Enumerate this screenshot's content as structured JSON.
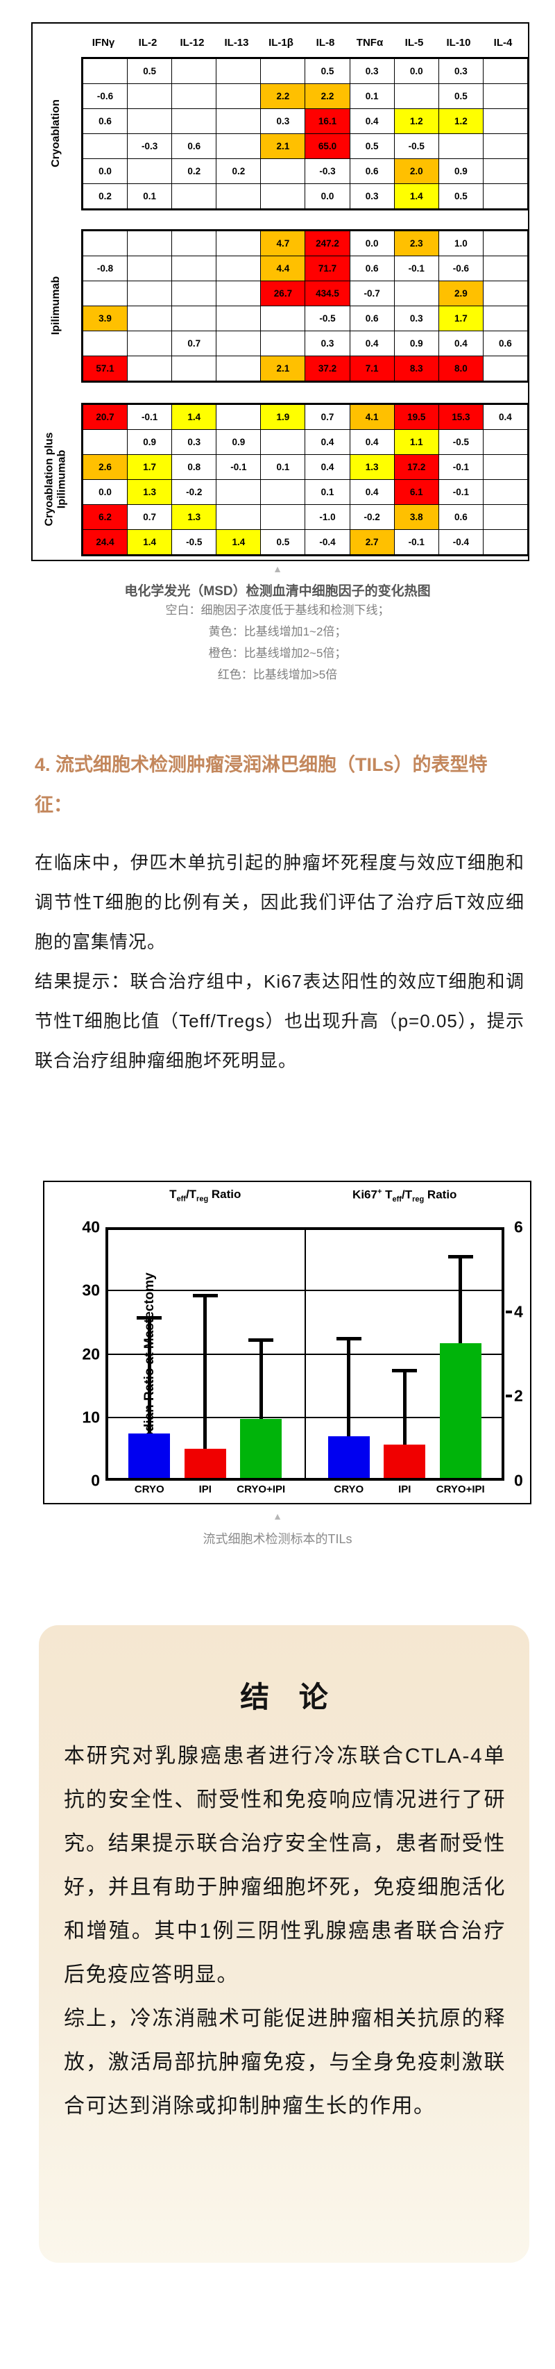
{
  "colors": {
    "yellow": "#FFFF00",
    "orange": "#FFC000",
    "red": "#FF0000",
    "bar_blue": "#0000F0",
    "bar_red": "#F00000",
    "bar_green": "#00B40A",
    "heading_accent": "#C3875C",
    "caption_gray": "#7F7F7F"
  },
  "heatmap": {
    "columns": [
      "IFNγ",
      "IL-2",
      "IL-12",
      "IL-13",
      "IL-1β",
      "IL-8",
      "TNFα",
      "IL-5",
      "IL-10",
      "IL-4"
    ],
    "color_codes": {
      "Y": "#FFFF00",
      "O": "#FFC000",
      "R": "#FF0000"
    },
    "groups": [
      {
        "label": "Cryoablation",
        "rows": [
          [
            [
              "",
              ""
            ],
            [
              "0.5",
              ""
            ],
            [
              "",
              ""
            ],
            [
              "",
              ""
            ],
            [
              "",
              ""
            ],
            [
              "0.5",
              ""
            ],
            [
              "0.3",
              ""
            ],
            [
              "0.0",
              ""
            ],
            [
              "0.3",
              ""
            ],
            [
              "",
              ""
            ]
          ],
          [
            [
              "-0.6",
              ""
            ],
            [
              "",
              ""
            ],
            [
              "",
              ""
            ],
            [
              "",
              ""
            ],
            [
              "2.2",
              "O"
            ],
            [
              "2.2",
              "O"
            ],
            [
              "0.1",
              ""
            ],
            [
              "",
              ""
            ],
            [
              "0.5",
              ""
            ],
            [
              "",
              ""
            ]
          ],
          [
            [
              "0.6",
              ""
            ],
            [
              "",
              ""
            ],
            [
              "",
              ""
            ],
            [
              "",
              ""
            ],
            [
              "0.3",
              ""
            ],
            [
              "16.1",
              "R"
            ],
            [
              "0.4",
              ""
            ],
            [
              "1.2",
              "Y"
            ],
            [
              "1.2",
              "Y"
            ],
            [
              "",
              ""
            ]
          ],
          [
            [
              "",
              ""
            ],
            [
              "-0.3",
              ""
            ],
            [
              "0.6",
              ""
            ],
            [
              "",
              ""
            ],
            [
              "2.1",
              "O"
            ],
            [
              "65.0",
              "R"
            ],
            [
              "0.5",
              ""
            ],
            [
              "-0.5",
              ""
            ],
            [
              "",
              ""
            ],
            [
              "",
              ""
            ]
          ],
          [
            [
              "0.0",
              ""
            ],
            [
              "",
              ""
            ],
            [
              "0.2",
              ""
            ],
            [
              "0.2",
              ""
            ],
            [
              "",
              ""
            ],
            [
              "-0.3",
              ""
            ],
            [
              "0.6",
              ""
            ],
            [
              "2.0",
              "O"
            ],
            [
              "0.9",
              ""
            ],
            [
              "",
              ""
            ]
          ],
          [
            [
              "0.2",
              ""
            ],
            [
              "0.1",
              ""
            ],
            [
              "",
              ""
            ],
            [
              "",
              ""
            ],
            [
              "",
              ""
            ],
            [
              "0.0",
              ""
            ],
            [
              "0.3",
              ""
            ],
            [
              "1.4",
              "Y"
            ],
            [
              "0.5",
              ""
            ],
            [
              "",
              ""
            ]
          ]
        ]
      },
      {
        "label": "Ipilimumab",
        "rows": [
          [
            [
              "",
              ""
            ],
            [
              "",
              ""
            ],
            [
              "",
              ""
            ],
            [
              "",
              ""
            ],
            [
              "4.7",
              "O"
            ],
            [
              "247.2",
              "R"
            ],
            [
              "0.0",
              ""
            ],
            [
              "2.3",
              "O"
            ],
            [
              "1.0",
              ""
            ],
            [
              "",
              ""
            ]
          ],
          [
            [
              "-0.8",
              ""
            ],
            [
              "",
              ""
            ],
            [
              "",
              ""
            ],
            [
              "",
              ""
            ],
            [
              "4.4",
              "O"
            ],
            [
              "71.7",
              "R"
            ],
            [
              "0.6",
              ""
            ],
            [
              "-0.1",
              ""
            ],
            [
              "-0.6",
              ""
            ],
            [
              "",
              ""
            ]
          ],
          [
            [
              "",
              ""
            ],
            [
              "",
              ""
            ],
            [
              "",
              ""
            ],
            [
              "",
              ""
            ],
            [
              "26.7",
              "R"
            ],
            [
              "434.5",
              "R"
            ],
            [
              "-0.7",
              ""
            ],
            [
              "",
              ""
            ],
            [
              "2.9",
              "O"
            ],
            [
              "",
              ""
            ]
          ],
          [
            [
              "3.9",
              "O"
            ],
            [
              "",
              ""
            ],
            [
              "",
              ""
            ],
            [
              "",
              ""
            ],
            [
              "",
              ""
            ],
            [
              "-0.5",
              ""
            ],
            [
              "0.6",
              ""
            ],
            [
              "0.3",
              ""
            ],
            [
              "1.7",
              "Y"
            ],
            [
              "",
              ""
            ]
          ],
          [
            [
              "",
              ""
            ],
            [
              "",
              ""
            ],
            [
              "0.7",
              ""
            ],
            [
              "",
              ""
            ],
            [
              "",
              ""
            ],
            [
              "0.3",
              ""
            ],
            [
              "0.4",
              ""
            ],
            [
              "0.9",
              ""
            ],
            [
              "0.4",
              ""
            ],
            [
              "0.6",
              ""
            ]
          ],
          [
            [
              "57.1",
              "R"
            ],
            [
              "",
              ""
            ],
            [
              "",
              ""
            ],
            [
              "",
              ""
            ],
            [
              "2.1",
              "O"
            ],
            [
              "37.2",
              "R"
            ],
            [
              "7.1",
              "R"
            ],
            [
              "8.3",
              "R"
            ],
            [
              "8.0",
              "R"
            ],
            [
              "",
              ""
            ]
          ]
        ]
      },
      {
        "label": "Cryoablation plus\nIpilimumab",
        "rows": [
          [
            [
              "20.7",
              "R"
            ],
            [
              "-0.1",
              ""
            ],
            [
              "1.4",
              "Y"
            ],
            [
              "",
              ""
            ],
            [
              "1.9",
              "Y"
            ],
            [
              "0.7",
              ""
            ],
            [
              "4.1",
              "O"
            ],
            [
              "19.5",
              "R"
            ],
            [
              "15.3",
              "R"
            ],
            [
              "0.4",
              ""
            ]
          ],
          [
            [
              "",
              ""
            ],
            [
              "0.9",
              ""
            ],
            [
              "0.3",
              ""
            ],
            [
              "0.9",
              ""
            ],
            [
              "",
              ""
            ],
            [
              "0.4",
              ""
            ],
            [
              "0.4",
              ""
            ],
            [
              "1.1",
              "Y"
            ],
            [
              "-0.5",
              ""
            ],
            [
              "",
              ""
            ]
          ],
          [
            [
              "2.6",
              "O"
            ],
            [
              "1.7",
              "Y"
            ],
            [
              "0.8",
              ""
            ],
            [
              "-0.1",
              ""
            ],
            [
              "0.1",
              ""
            ],
            [
              "0.4",
              ""
            ],
            [
              "1.3",
              "Y"
            ],
            [
              "17.2",
              "R"
            ],
            [
              "-0.1",
              ""
            ],
            [
              "",
              ""
            ]
          ],
          [
            [
              "0.0",
              ""
            ],
            [
              "1.3",
              "Y"
            ],
            [
              "-0.2",
              ""
            ],
            [
              "",
              ""
            ],
            [
              "",
              ""
            ],
            [
              "0.1",
              ""
            ],
            [
              "0.4",
              ""
            ],
            [
              "6.1",
              "R"
            ],
            [
              "-0.1",
              ""
            ],
            [
              "",
              ""
            ]
          ],
          [
            [
              "6.2",
              "R"
            ],
            [
              "0.7",
              ""
            ],
            [
              "1.3",
              "Y"
            ],
            [
              "",
              ""
            ],
            [
              "",
              ""
            ],
            [
              "-1.0",
              ""
            ],
            [
              "-0.2",
              ""
            ],
            [
              "3.8",
              "O"
            ],
            [
              "0.6",
              ""
            ],
            [
              "",
              ""
            ]
          ],
          [
            [
              "24.4",
              "R"
            ],
            [
              "1.4",
              "Y"
            ],
            [
              "-0.5",
              ""
            ],
            [
              "1.4",
              "Y"
            ],
            [
              "0.5",
              ""
            ],
            [
              "-0.4",
              ""
            ],
            [
              "2.7",
              "O"
            ],
            [
              "-0.1",
              ""
            ],
            [
              "-0.4",
              ""
            ],
            [
              "",
              ""
            ]
          ]
        ]
      }
    ]
  },
  "caption1": {
    "triangle": "▲",
    "title": "电化学发光（MSD）检测血清中细胞因子的变化热图",
    "lines": [
      "空白：细胞因子浓度低于基线和检测下线；",
      "黄色：比基线增加1~2倍；",
      "橙色：比基线增加2~5倍；",
      "红色：比基线增加>5倍"
    ]
  },
  "section4": {
    "heading": "4. 流式细胞术检测肿瘤浸润淋巴细胞（TILs）的表型特征：",
    "paragraphs": [
      "在临床中，伊匹木单抗引起的肿瘤坏死程度与效应T细胞和调节性T细胞的比例有关，因此我们评估了治疗后T效应细胞的富集情况。",
      "结果提示：联合治疗组中，Ki67表达阳性的效应T细胞和调节性T细胞比值（Teff/Tregs）也出现升高（p=0.05），提示联合治疗组肿瘤细胞坏死明显。"
    ]
  },
  "chart_data": {
    "type": "bar",
    "ylabel": "Median Ratio at Mastectomy",
    "left_axis": {
      "lim": [
        0,
        40
      ],
      "ticks": [
        0,
        10,
        20,
        30,
        40
      ]
    },
    "right_axis": {
      "lim": [
        0,
        6
      ],
      "ticks": [
        0,
        2,
        4,
        6
      ]
    },
    "gridlines_left_values": [
      10,
      20,
      30
    ],
    "categories": [
      "CRYO",
      "IPI",
      "CRYO+IPI"
    ],
    "panels": [
      {
        "title": "Teff/Treg Ratio",
        "title_parts": {
          "t1": "T",
          "sub1": "eff",
          "t2": "/T",
          "sub2": "reg",
          "t3": " Ratio"
        },
        "axis": "left",
        "series": [
          {
            "category": "CRYO",
            "value": 7.5,
            "error_top": 26,
            "color": "#0000F0"
          },
          {
            "category": "IPI",
            "value": 5.0,
            "error_top": 29.5,
            "color": "#F00000"
          },
          {
            "category": "CRYO+IPI",
            "value": 9.7,
            "error_top": 22.5,
            "color": "#00B40A"
          }
        ]
      },
      {
        "title": "Ki67+ Teff/Treg Ratio",
        "title_parts": {
          "t0": "Ki67",
          "sup0": "+",
          "t1": " T",
          "sub1": "eff",
          "t2": "/T",
          "sub2": "reg",
          "t3": " Ratio"
        },
        "axis": "right",
        "series": [
          {
            "category": "CRYO",
            "value": 1.05,
            "error_top": 3.4,
            "color": "#0000F0"
          },
          {
            "category": "IPI",
            "value": 0.85,
            "error_top": 2.65,
            "color": "#F00000"
          },
          {
            "category": "CRYO+IPI",
            "value": 3.25,
            "error_top": 5.35,
            "color": "#00B40A"
          }
        ]
      }
    ]
  },
  "chart_caption": {
    "triangle": "▲",
    "text": "流式细胞术检测标本的TILs"
  },
  "conclusion": {
    "title": "结 论",
    "paragraphs": [
      "本研究对乳腺癌患者进行冷冻联合CTLA-4单抗的安全性、耐受性和免疫响应情况进行了研究。结果提示联合治疗安全性高，患者耐受性好，并且有助于肿瘤细胞坏死，免疫细胞活化和增殖。其中1例三阴性乳腺癌患者联合治疗后免疫应答明显。",
      "综上，冷冻消融术可能促进肿瘤相关抗原的释放，激活局部抗肿瘤免疫，与全身免疫刺激联合可达到消除或抑制肿瘤生长的作用。"
    ]
  }
}
